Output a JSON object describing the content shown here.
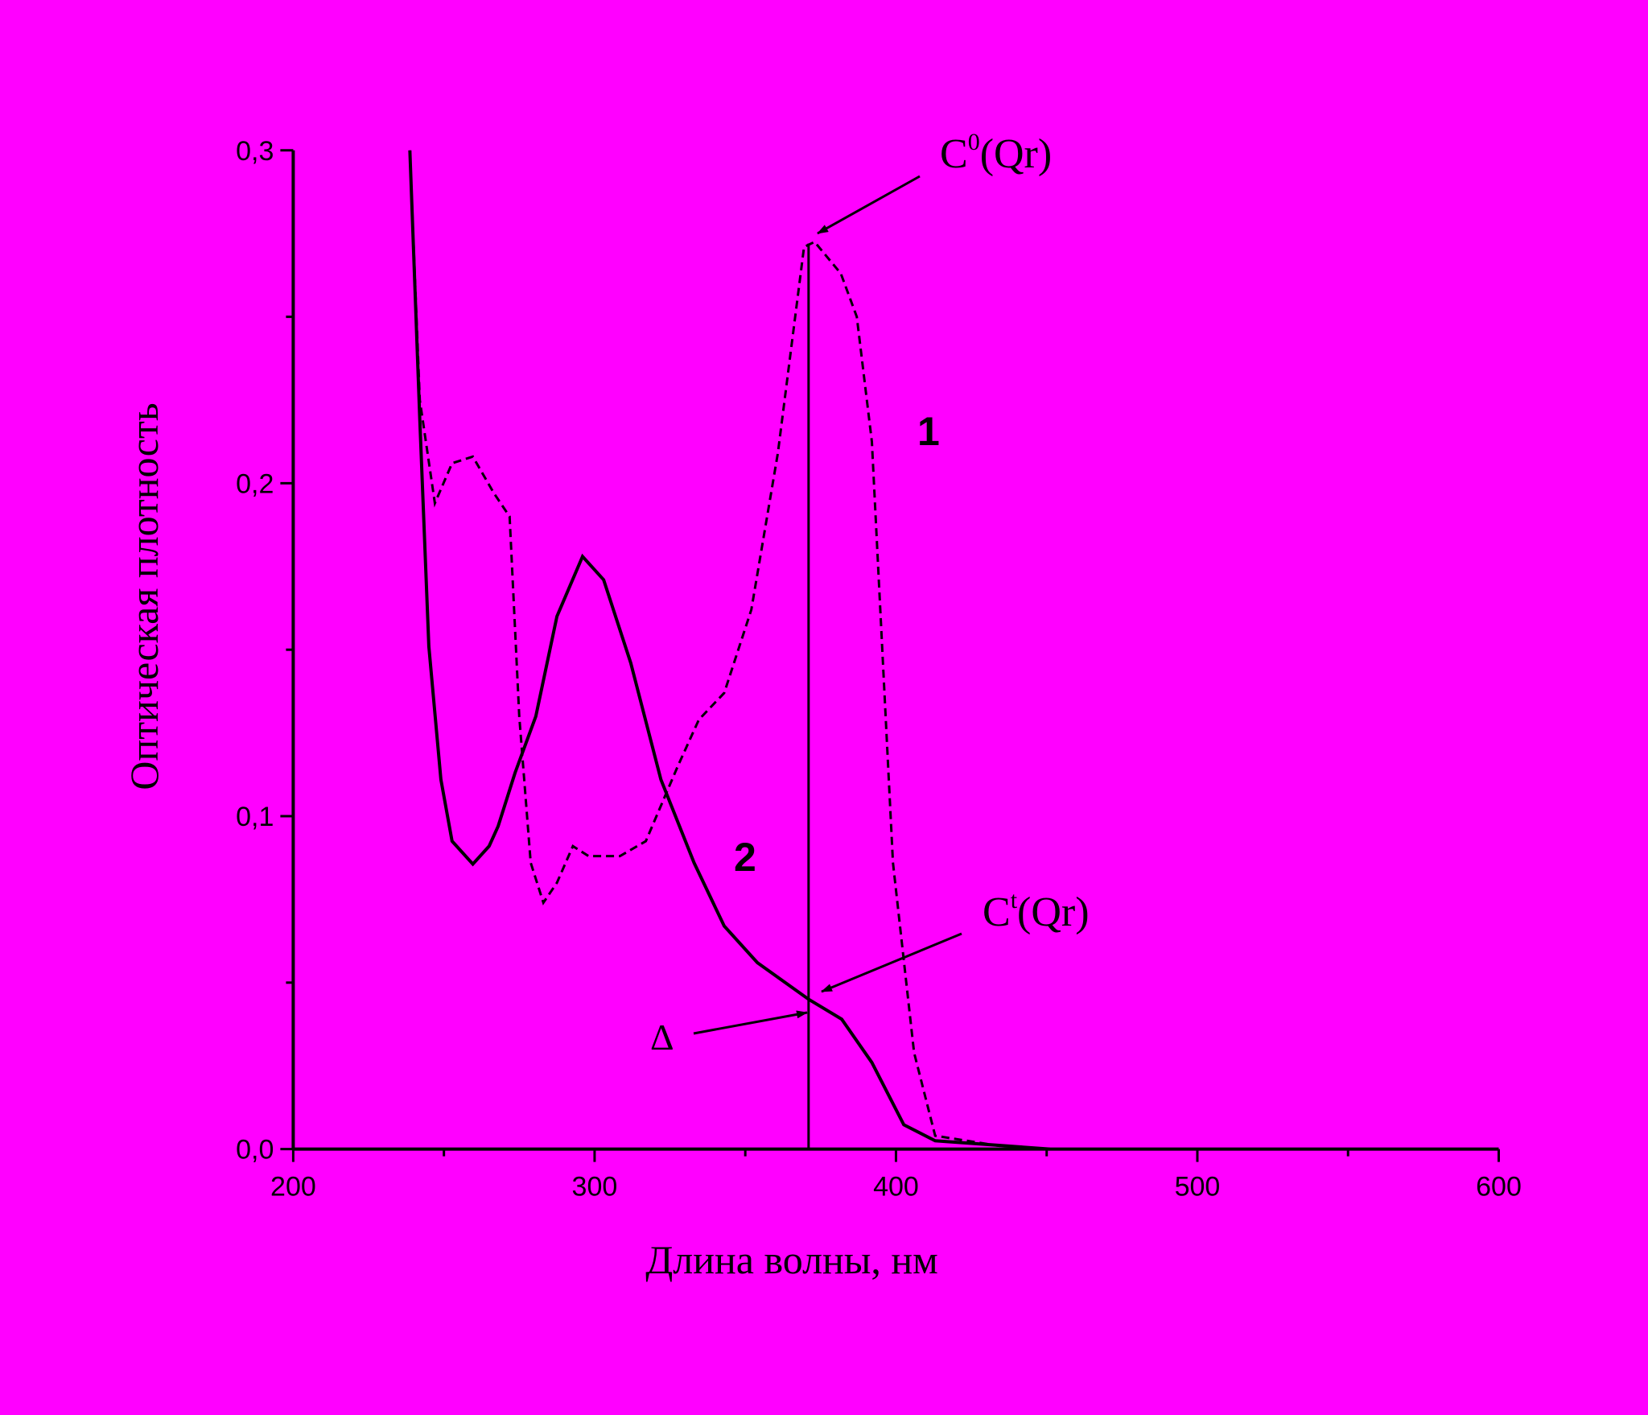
{
  "chart_data": {
    "type": "line",
    "x_label": "Длина волны, нм",
    "y_label": "Оптическая плотность",
    "xlim": [
      200,
      600
    ],
    "ylim": [
      0,
      0.3
    ],
    "xticks": [
      200,
      300,
      400,
      500,
      600
    ],
    "xminorticks": [
      250,
      350,
      450,
      550
    ],
    "yticks": [
      {
        "value": 0,
        "label": "0,0"
      },
      {
        "value": 0.1,
        "label": "0,1"
      },
      {
        "value": 0.2,
        "label": "0,2"
      },
      {
        "value": 0.3,
        "label": "0,3"
      }
    ],
    "yminorticks": [
      0.05,
      0.15,
      0.25
    ],
    "series": [
      {
        "name": "1",
        "color": "#000000",
        "dash": true,
        "x": [
          238.7,
          242,
          247,
          252.7,
          259.6,
          266.6,
          271.8,
          275,
          278.8,
          283,
          287.5,
          292.8,
          298,
          308.4,
          317,
          327.6,
          334.6,
          343,
          352,
          360.8,
          369.5,
          373,
          381.7,
          387,
          392,
          399,
          406,
          413,
          434,
          451
        ],
        "values": [
          0.3,
          0.225,
          0.194,
          0.206,
          0.208,
          0.197,
          0.19,
          0.13,
          0.086,
          0.074,
          0.08,
          0.091,
          0.088,
          0.088,
          0.0925,
          0.115,
          0.129,
          0.137,
          0.162,
          0.209,
          0.271,
          0.2725,
          0.263,
          0.25,
          0.2125,
          0.086,
          0.029,
          0.004,
          0.001,
          0
        ]
      },
      {
        "name": "2",
        "color": "#000000",
        "dash": false,
        "x": [
          238.7,
          242,
          245,
          249,
          252.7,
          259.6,
          265,
          268,
          273.6,
          280.5,
          287.5,
          296,
          303,
          312,
          322,
          333,
          343,
          354,
          371,
          382,
          392,
          402.6,
          413,
          451
        ],
        "values": [
          0.3,
          0.219,
          0.151,
          0.111,
          0.0925,
          0.0856,
          0.091,
          0.097,
          0.113,
          0.13,
          0.16,
          0.178,
          0.171,
          0.146,
          0.111,
          0.086,
          0.067,
          0.056,
          0.045,
          0.039,
          0.026,
          0.0073,
          0.0025,
          0
        ]
      }
    ],
    "vline": {
      "x": 371,
      "y": 0.272
    },
    "annotations": {
      "c0": {
        "base": "C",
        "sup": "0",
        "rest": "(Qr)"
      },
      "ct": {
        "base": "C",
        "sup": "t",
        "rest": "(Qr)"
      },
      "delta": "Δ"
    }
  }
}
